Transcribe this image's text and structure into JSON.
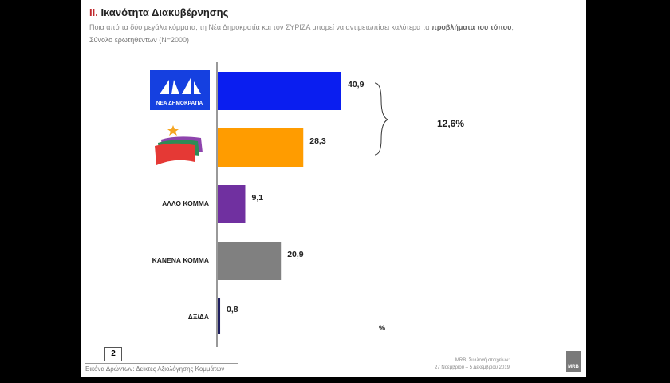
{
  "header": {
    "title_num": "II.",
    "title": "Ικανότητα Διακυβέρνησης",
    "question": "Ποια από τα δύο μεγάλα κόμματα, τη Νέα Δημοκρατία και τον ΣΥΡΙΖΑ μπορεί να αντιμετωπίσει καλύτερα  τα ",
    "question_bold": "προβλήματα του τόπου",
    "question_end": ";",
    "sample": "Σύνολο ερωτηθέντων (N=2000)"
  },
  "chart_data": {
    "type": "bar",
    "orientation": "horizontal",
    "categories": [
      "ΝΕΑ ΔΗΜΟΚΡΑΤΙΑ",
      "ΣΥΡΙΖΑ",
      "ΑΛΛΟ ΚΟΜΜΑ",
      "ΚΑΝΕΝΑ ΚΟΜΜΑ",
      "ΔΞ/ΔΑ"
    ],
    "values": [
      40.9,
      28.3,
      9.1,
      20.9,
      0.8
    ],
    "value_labels": [
      "40,9",
      "28,3",
      "9,1",
      "20,9",
      "0,8"
    ],
    "colors": [
      "#0a1ef0",
      "#ff9c00",
      "#7030a0",
      "#808080",
      "#1f1f60"
    ],
    "annotation": "12,6%",
    "unit": "%",
    "xlim": [
      0,
      50
    ]
  },
  "logos": {
    "nd_text": "ΝΕΑ ΔΗΜΟΚΡΑΤΙΑ"
  },
  "footer": {
    "page": "2",
    "caption": "Εικόνα Δρώντων: Δείκτες Αξιολόγησης  Κομμάτων",
    "source_line1": "MRB, Συλλογή στοιχείων:",
    "source_line2": "27 Νοεμβρίου – 5 Δεκεμβρίου 2019",
    "brand": "MRB"
  }
}
